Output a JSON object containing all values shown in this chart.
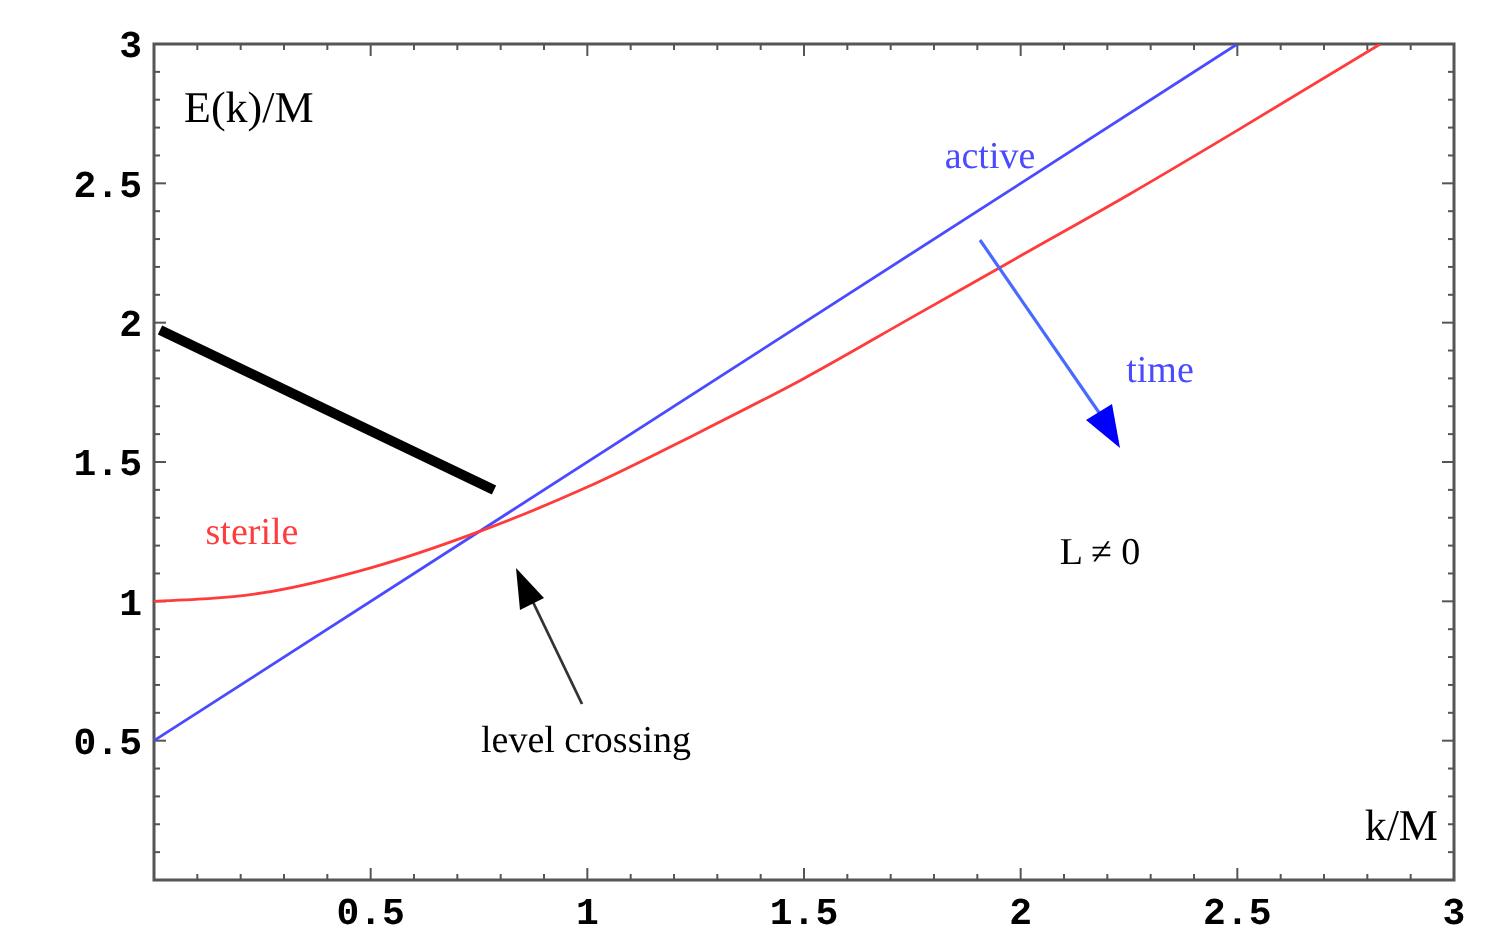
{
  "chart_data": {
    "type": "line",
    "xlabel": "k/M",
    "ylabel": "E(k)/M",
    "xlim": [
      0,
      3
    ],
    "ylim": [
      0,
      3
    ],
    "xticks": [
      {
        "value": 0.1,
        "label": null
      },
      {
        "value": 0.2,
        "label": null
      },
      {
        "value": 0.3,
        "label": null
      },
      {
        "value": 0.4,
        "label": null
      },
      0.5,
      {
        "value": 0.6,
        "label": null
      },
      {
        "value": 0.7,
        "label": null
      },
      {
        "value": 0.8,
        "label": null
      },
      {
        "value": 0.9,
        "label": null
      },
      1,
      {
        "value": 1.1,
        "label": null
      },
      {
        "value": 1.2,
        "label": null
      },
      {
        "value": 1.3,
        "label": null
      },
      {
        "value": 1.4,
        "label": null
      },
      1.5,
      {
        "value": 1.6,
        "label": null
      },
      {
        "value": 1.7,
        "label": null
      },
      {
        "value": 1.8,
        "label": null
      },
      {
        "value": 1.9,
        "label": null
      },
      2,
      {
        "value": 2.1,
        "label": null
      },
      {
        "value": 2.2,
        "label": null
      },
      {
        "value": 2.3,
        "label": null
      },
      {
        "value": 2.4,
        "label": null
      },
      2.5,
      {
        "value": 2.6,
        "label": null
      },
      {
        "value": 2.7,
        "label": null
      },
      {
        "value": 2.8,
        "label": null
      },
      {
        "value": 2.9,
        "label": null
      },
      3
    ],
    "yticks": [
      {
        "value": 0.1,
        "label": null
      },
      {
        "value": 0.2,
        "label": null
      },
      {
        "value": 0.3,
        "label": null
      },
      {
        "value": 0.4,
        "label": null
      },
      0.5,
      {
        "value": 0.6,
        "label": null
      },
      {
        "value": 0.7,
        "label": null
      },
      {
        "value": 0.8,
        "label": null
      },
      {
        "value": 0.9,
        "label": null
      },
      1,
      {
        "value": 1.1,
        "label": null
      },
      {
        "value": 1.2,
        "label": null
      },
      {
        "value": 1.3,
        "label": null
      },
      {
        "value": 1.4,
        "label": null
      },
      1.5,
      {
        "value": 1.6,
        "label": null
      },
      {
        "value": 1.7,
        "label": null
      },
      {
        "value": 1.8,
        "label": null
      },
      {
        "value": 1.9,
        "label": null
      },
      2,
      {
        "value": 2.1,
        "label": null
      },
      {
        "value": 2.2,
        "label": null
      },
      {
        "value": 2.3,
        "label": null
      },
      {
        "value": 2.4,
        "label": null
      },
      2.5,
      {
        "value": 2.6,
        "label": null
      },
      {
        "value": 2.7,
        "label": null
      },
      {
        "value": 2.8,
        "label": null
      },
      {
        "value": 2.9,
        "label": null
      },
      3
    ],
    "grid": false,
    "marker": "none",
    "line_style": "solid",
    "series": [
      {
        "name": "active",
        "color": "#4a4aff",
        "x": [
          0,
          2.5
        ],
        "values": [
          0.5,
          3
        ]
      },
      {
        "name": "sterile",
        "color": "#ff3b3b",
        "x": [
          0,
          0.25,
          0.5,
          0.75,
          1,
          1.25,
          1.5,
          1.75,
          2,
          2.25,
          2.5,
          2.83
        ],
        "values": [
          1,
          1.03,
          1.12,
          1.25,
          1.41,
          1.6,
          1.8,
          2.02,
          2.24,
          2.46,
          2.69,
          3
        ]
      }
    ],
    "annotations": [
      "time",
      "L ≠ 0",
      "level crossing"
    ]
  }
}
